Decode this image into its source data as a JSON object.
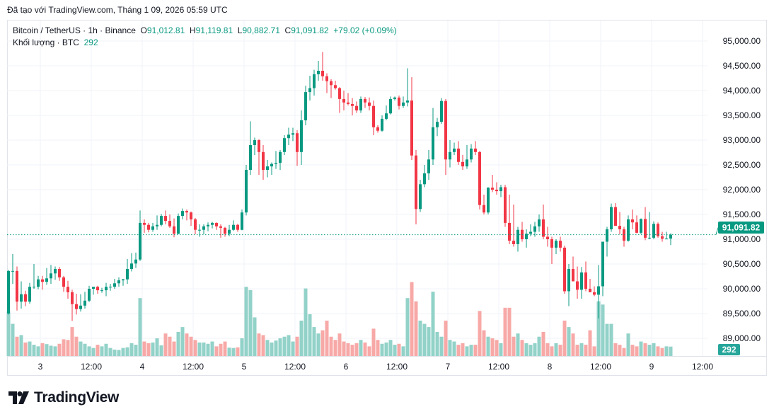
{
  "attribution": "Đã tạo với TradingView.com, Tháng 1 09, 2026 05:59 UTC",
  "legend": {
    "symbol": "Bitcoin / TetherUS · 1h · Binance",
    "o_label": "O",
    "o_value": "91,012.81",
    "h_label": "H",
    "h_value": "91,119.81",
    "l_label": "L",
    "l_value": "90,882.71",
    "c_label": "C",
    "c_value": "91,091.82",
    "change": "+79.02 (+0.09%)",
    "volume_label": "Khối lượng · BTC",
    "volume_value": "292"
  },
  "logo_text": "TradingView",
  "colors": {
    "up": "#089981",
    "down": "#f23645",
    "up_volume": "#92d2c8",
    "down_volume": "#f7a9a7",
    "grid": "#f0f3fa",
    "text": "#131722"
  },
  "chart_data": {
    "type": "candlestick",
    "interval": "1h",
    "ylim": [
      88700,
      95300
    ],
    "yticks": [
      "95,000.00",
      "94,500.00",
      "94,000.00",
      "93,500.00",
      "93,000.00",
      "92,500.00",
      "92,000.00",
      "91,500.00",
      "91,000.00",
      "90,500.00",
      "90,000.00",
      "89,500.00",
      "89,000.00"
    ],
    "ytick_values": [
      95000,
      94500,
      94000,
      93500,
      93000,
      92500,
      92000,
      91500,
      91000,
      90500,
      90000,
      89500,
      89000
    ],
    "xticks": [
      "3",
      "12:00",
      "4",
      "12:00",
      "5",
      "12:00",
      "6",
      "12:00",
      "7",
      "12:00",
      "8",
      "12:00",
      "9",
      "12:00"
    ],
    "xtick_candle_index": [
      7.5,
      19.5,
      31.5,
      43.5,
      55.5,
      67.5,
      79.5,
      91.5,
      103.5,
      115.5,
      127.5,
      139.5,
      151.5,
      163.5
    ],
    "last_price": 91091.82,
    "last_price_label": "91,091.82",
    "last_volume": 292,
    "last_volume_label": "292",
    "grid": true,
    "candle_fields": [
      "open",
      "high",
      "low",
      "close",
      "volume"
    ],
    "candles": [
      [
        89500,
        90380,
        89480,
        90360,
        1400
      ],
      [
        90360,
        90700,
        90100,
        90360,
        1000
      ],
      [
        90360,
        90450,
        89560,
        89740,
        600
      ],
      [
        89740,
        90150,
        89600,
        89890,
        650
      ],
      [
        89890,
        89960,
        89650,
        89740,
        420
      ],
      [
        89740,
        90120,
        89700,
        90040,
        450
      ],
      [
        90040,
        90500,
        90000,
        90040,
        350
      ],
      [
        90040,
        90260,
        89990,
        90190,
        300
      ],
      [
        90190,
        90260,
        89980,
        90140,
        400
      ],
      [
        90140,
        90420,
        90080,
        90210,
        370
      ],
      [
        90210,
        90480,
        90100,
        90310,
        320
      ],
      [
        90310,
        90450,
        90180,
        90400,
        300
      ],
      [
        90400,
        90440,
        90160,
        90230,
        380
      ],
      [
        90230,
        90260,
        89940,
        90040,
        520
      ],
      [
        90040,
        90160,
        89800,
        89930,
        500
      ],
      [
        89930,
        89980,
        89350,
        89690,
        900
      ],
      [
        89690,
        89900,
        89480,
        89590,
        600
      ],
      [
        89590,
        89890,
        89540,
        89660,
        450
      ],
      [
        89660,
        89940,
        89600,
        89760,
        380
      ],
      [
        89760,
        90060,
        89730,
        90000,
        300
      ],
      [
        90000,
        90040,
        89880,
        90040,
        250
      ],
      [
        90040,
        90060,
        89900,
        89970,
        350
      ],
      [
        89970,
        90020,
        89920,
        89970,
        300
      ],
      [
        89970,
        90120,
        89850,
        90040,
        380
      ],
      [
        90040,
        90100,
        89960,
        90040,
        250
      ],
      [
        90040,
        90200,
        90000,
        90110,
        200
      ],
      [
        90110,
        90230,
        90040,
        90170,
        190
      ],
      [
        90170,
        90200,
        90060,
        90190,
        250
      ],
      [
        90190,
        90600,
        90100,
        90400,
        270
      ],
      [
        90400,
        90720,
        90350,
        90510,
        400
      ],
      [
        90510,
        90730,
        90420,
        90590,
        350
      ],
      [
        90590,
        91580,
        90560,
        91330,
        1800
      ],
      [
        91330,
        91400,
        91130,
        91290,
        450
      ],
      [
        91290,
        91330,
        91140,
        91190,
        400
      ],
      [
        91190,
        91330,
        91150,
        91260,
        420
      ],
      [
        91260,
        91480,
        91190,
        91290,
        550
      ],
      [
        91290,
        91510,
        91260,
        91470,
        330
      ],
      [
        91470,
        91580,
        91300,
        91370,
        700
      ],
      [
        91370,
        91500,
        91230,
        91260,
        600
      ],
      [
        91260,
        91420,
        91040,
        91110,
        450
      ],
      [
        91110,
        91520,
        91100,
        91470,
        750
      ],
      [
        91470,
        91620,
        91400,
        91570,
        900
      ],
      [
        91570,
        91600,
        91380,
        91540,
        700
      ],
      [
        91540,
        91560,
        91270,
        91400,
        600
      ],
      [
        91400,
        91430,
        91100,
        91190,
        500
      ],
      [
        91190,
        91300,
        91050,
        91190,
        420
      ],
      [
        91190,
        91300,
        91100,
        91260,
        420
      ],
      [
        91260,
        91340,
        91160,
        91290,
        380
      ],
      [
        91290,
        91350,
        91220,
        91330,
        450
      ],
      [
        91330,
        91340,
        91190,
        91260,
        300
      ],
      [
        91260,
        91300,
        91030,
        91230,
        380
      ],
      [
        91230,
        91250,
        91050,
        91110,
        450
      ],
      [
        91110,
        91290,
        91060,
        91190,
        260
      ],
      [
        91190,
        91380,
        91170,
        91290,
        250
      ],
      [
        91290,
        91310,
        91150,
        91190,
        270
      ],
      [
        91190,
        91600,
        91180,
        91540,
        550
      ],
      [
        91540,
        92500,
        91480,
        92400,
        2150
      ],
      [
        92400,
        93380,
        92300,
        92900,
        2050
      ],
      [
        92900,
        93050,
        92700,
        93000,
        1200
      ],
      [
        93000,
        93020,
        92300,
        92760,
        700
      ],
      [
        92760,
        92900,
        92200,
        92400,
        650
      ],
      [
        92400,
        92600,
        92250,
        92470,
        500
      ],
      [
        92470,
        92550,
        92300,
        92520,
        420
      ],
      [
        92520,
        92780,
        92420,
        92540,
        480
      ],
      [
        92540,
        92800,
        92400,
        92760,
        550
      ],
      [
        92760,
        93100,
        92700,
        93040,
        600
      ],
      [
        93040,
        93250,
        92900,
        93110,
        650
      ],
      [
        93110,
        93250,
        92980,
        93140,
        450
      ],
      [
        93140,
        93200,
        92480,
        92760,
        600
      ],
      [
        92760,
        93600,
        92500,
        93400,
        1100
      ],
      [
        93400,
        94100,
        93300,
        93970,
        2100
      ],
      [
        93970,
        94300,
        93800,
        94050,
        1300
      ],
      [
        94050,
        94420,
        93900,
        94330,
        900
      ],
      [
        94330,
        94600,
        94200,
        94400,
        700
      ],
      [
        94400,
        94780,
        94200,
        94290,
        800
      ],
      [
        94290,
        94350,
        93950,
        94190,
        1100
      ],
      [
        94190,
        94230,
        93850,
        94110,
        600
      ],
      [
        94110,
        94200,
        94020,
        94050,
        500
      ],
      [
        94050,
        94070,
        93550,
        93830,
        700
      ],
      [
        93830,
        94000,
        93600,
        93760,
        450
      ],
      [
        93760,
        93950,
        93700,
        93730,
        400
      ],
      [
        93730,
        93850,
        93500,
        93690,
        350
      ],
      [
        93690,
        93780,
        93550,
        93600,
        400
      ],
      [
        93600,
        93880,
        93550,
        93830,
        500
      ],
      [
        93830,
        93870,
        93650,
        93760,
        420
      ],
      [
        93760,
        93860,
        93600,
        93690,
        300
      ],
      [
        93690,
        93800,
        93100,
        93260,
        850
      ],
      [
        93260,
        93300,
        93150,
        93190,
        500
      ],
      [
        93190,
        93500,
        93170,
        93430,
        380
      ],
      [
        93430,
        93700,
        93400,
        93540,
        420
      ],
      [
        93540,
        93880,
        93520,
        93830,
        500
      ],
      [
        93830,
        93880,
        93800,
        93860,
        350
      ],
      [
        93860,
        93900,
        93620,
        93690,
        380
      ],
      [
        93690,
        93880,
        93650,
        93760,
        300
      ],
      [
        93760,
        94450,
        93680,
        93800,
        1800
      ],
      [
        93800,
        94270,
        92600,
        92690,
        2300
      ],
      [
        92690,
        92800,
        91300,
        91610,
        1700
      ],
      [
        91610,
        92200,
        91550,
        92110,
        1100
      ],
      [
        92110,
        92500,
        92050,
        92330,
        1000
      ],
      [
        92330,
        92800,
        92200,
        92610,
        900
      ],
      [
        92610,
        93650,
        92500,
        93260,
        2000
      ],
      [
        93260,
        93450,
        93080,
        93370,
        750
      ],
      [
        93370,
        93850,
        93330,
        93790,
        600
      ],
      [
        93790,
        93830,
        92300,
        92610,
        1100
      ],
      [
        92610,
        93000,
        92450,
        92760,
        500
      ],
      [
        92760,
        92950,
        92700,
        92830,
        450
      ],
      [
        92830,
        92980,
        92500,
        92560,
        350
      ],
      [
        92560,
        92700,
        92400,
        92470,
        400
      ],
      [
        92470,
        92900,
        92420,
        92610,
        300
      ],
      [
        92610,
        92920,
        92550,
        92830,
        350
      ],
      [
        92830,
        92980,
        92700,
        92760,
        350
      ],
      [
        92760,
        92780,
        91600,
        91690,
        1400
      ],
      [
        91690,
        91900,
        91500,
        91540,
        800
      ],
      [
        91540,
        92050,
        91500,
        92040,
        600
      ],
      [
        92040,
        92300,
        91950,
        92000,
        550
      ],
      [
        92000,
        92150,
        91900,
        91970,
        500
      ],
      [
        91970,
        92100,
        91850,
        92050,
        400
      ],
      [
        92050,
        92100,
        91250,
        91330,
        1500
      ],
      [
        91330,
        91900,
        90900,
        90970,
        1500
      ],
      [
        90970,
        91700,
        90850,
        90900,
        600
      ],
      [
        90900,
        91250,
        90750,
        91190,
        700
      ],
      [
        91190,
        91350,
        90950,
        91000,
        500
      ],
      [
        91000,
        91200,
        90830,
        91110,
        400
      ],
      [
        91110,
        91300,
        91060,
        91150,
        350
      ],
      [
        91150,
        91350,
        91050,
        91260,
        400
      ],
      [
        91260,
        91500,
        91150,
        91400,
        600
      ],
      [
        91400,
        91700,
        91000,
        91050,
        750
      ],
      [
        91050,
        91250,
        90850,
        91000,
        400
      ],
      [
        91000,
        91050,
        90500,
        90830,
        300
      ],
      [
        90830,
        91000,
        90700,
        90970,
        400
      ],
      [
        90970,
        91050,
        90750,
        90830,
        350
      ],
      [
        90830,
        90870,
        89900,
        89950,
        1100
      ],
      [
        89950,
        90500,
        89650,
        90400,
        900
      ],
      [
        90400,
        90650,
        90150,
        90150,
        700
      ],
      [
        90150,
        90450,
        89800,
        89980,
        350
      ],
      [
        89980,
        90440,
        89800,
        90330,
        400
      ],
      [
        90330,
        90550,
        89950,
        90000,
        350
      ],
      [
        90000,
        90200,
        89930,
        89930,
        800
      ],
      [
        89930,
        90050,
        89850,
        89880,
        300
      ],
      [
        89880,
        90480,
        89400,
        90050,
        1700
      ],
      [
        90050,
        90950,
        89850,
        90950,
        1600
      ],
      [
        90950,
        91250,
        90650,
        91200,
        1000
      ],
      [
        91200,
        91720,
        91150,
        91650,
        1000
      ],
      [
        91650,
        91730,
        91270,
        91270,
        400
      ],
      [
        91270,
        91550,
        91100,
        91200,
        350
      ],
      [
        91200,
        91250,
        90850,
        90970,
        250
      ],
      [
        90970,
        91480,
        90950,
        91400,
        700
      ],
      [
        91400,
        91600,
        91200,
        91340,
        350
      ],
      [
        91340,
        91480,
        91120,
        91130,
        300
      ],
      [
        91130,
        91420,
        91100,
        91410,
        450
      ],
      [
        91410,
        91650,
        90980,
        91030,
        400
      ],
      [
        91030,
        91550,
        91000,
        91030,
        350
      ],
      [
        91030,
        91360,
        91000,
        91310,
        400
      ],
      [
        91310,
        91340,
        91030,
        91060,
        300
      ],
      [
        91060,
        91150,
        90950,
        91010,
        250
      ],
      [
        91010,
        91150,
        91000,
        91012.81,
        300
      ],
      [
        91012.81,
        91119.81,
        90882.71,
        91091.82,
        292
      ]
    ]
  }
}
